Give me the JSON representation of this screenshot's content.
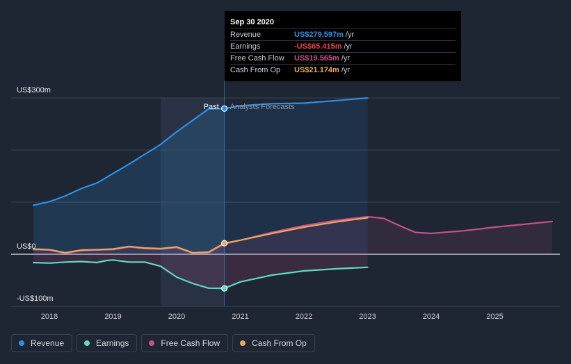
{
  "chart_data": {
    "type": "line",
    "x_ticks": [
      "2018",
      "2019",
      "2020",
      "2021",
      "2022",
      "2023",
      "2024",
      "2025"
    ],
    "y_ticks": [
      {
        "label": "US$300m",
        "value": 300
      },
      {
        "label": "US$0",
        "value": 0
      },
      {
        "label": "-US$100m",
        "value": -100
      }
    ],
    "ylim": [
      -100,
      300
    ],
    "divider_labels": {
      "past": "Past",
      "forecast": "Analysts Forecasts"
    },
    "divider_x": 2020.75,
    "series": [
      {
        "name": "Revenue",
        "color": "#2d8fe3",
        "points": [
          [
            2017.75,
            94
          ],
          [
            2018.0,
            101
          ],
          [
            2018.25,
            112
          ],
          [
            2018.5,
            126
          ],
          [
            2018.75,
            137
          ],
          [
            2019.0,
            155
          ],
          [
            2019.25,
            173
          ],
          [
            2019.5,
            192
          ],
          [
            2019.75,
            211
          ],
          [
            2020.0,
            235
          ],
          [
            2020.25,
            257
          ],
          [
            2020.5,
            279
          ],
          [
            2020.75,
            279.597
          ],
          [
            2021.0,
            285
          ],
          [
            2021.5,
            289
          ],
          [
            2022.0,
            290
          ],
          [
            2022.5,
            295
          ],
          [
            2023.0,
            300
          ]
        ]
      },
      {
        "name": "Earnings",
        "color": "#5dd9c4",
        "points": [
          [
            2017.75,
            -16
          ],
          [
            2018.0,
            -17
          ],
          [
            2018.25,
            -15
          ],
          [
            2018.5,
            -14
          ],
          [
            2018.75,
            -16
          ],
          [
            2018.9,
            -12
          ],
          [
            2019.0,
            -11
          ],
          [
            2019.25,
            -15
          ],
          [
            2019.5,
            -15
          ],
          [
            2019.75,
            -23
          ],
          [
            2020.0,
            -44
          ],
          [
            2020.25,
            -56
          ],
          [
            2020.5,
            -65
          ],
          [
            2020.75,
            -65.415
          ],
          [
            2021.0,
            -53
          ],
          [
            2021.5,
            -40
          ],
          [
            2022.0,
            -32
          ],
          [
            2022.5,
            -28
          ],
          [
            2023.0,
            -25
          ]
        ]
      },
      {
        "name": "Free Cash Flow",
        "color": "#c8508c",
        "points": [
          [
            2017.75,
            9
          ],
          [
            2018.0,
            8
          ],
          [
            2018.25,
            2
          ],
          [
            2018.5,
            7
          ],
          [
            2018.75,
            8
          ],
          [
            2019.0,
            9
          ],
          [
            2019.25,
            14
          ],
          [
            2019.5,
            11
          ],
          [
            2019.75,
            10
          ],
          [
            2020.0,
            13
          ],
          [
            2020.25,
            2
          ],
          [
            2020.5,
            3
          ],
          [
            2020.75,
            19.565
          ],
          [
            2021.0,
            27
          ],
          [
            2021.5,
            42
          ],
          [
            2022.0,
            55
          ],
          [
            2022.5,
            65
          ],
          [
            2023.0,
            72
          ],
          [
            2023.25,
            69
          ],
          [
            2023.5,
            55
          ],
          [
            2023.75,
            42
          ],
          [
            2024.0,
            40
          ],
          [
            2024.5,
            45
          ],
          [
            2025.0,
            52
          ],
          [
            2025.5,
            58
          ],
          [
            2025.9,
            63
          ]
        ]
      },
      {
        "name": "Cash From Op",
        "color": "#e8a85c",
        "points": [
          [
            2017.75,
            10
          ],
          [
            2018.0,
            9
          ],
          [
            2018.25,
            3
          ],
          [
            2018.5,
            8
          ],
          [
            2018.75,
            9
          ],
          [
            2019.0,
            10
          ],
          [
            2019.25,
            15
          ],
          [
            2019.5,
            12
          ],
          [
            2019.75,
            11
          ],
          [
            2020.0,
            14
          ],
          [
            2020.25,
            3
          ],
          [
            2020.5,
            4
          ],
          [
            2020.75,
            21.174
          ],
          [
            2021.0,
            27
          ],
          [
            2021.5,
            40
          ],
          [
            2022.0,
            52
          ],
          [
            2022.5,
            62
          ],
          [
            2023.0,
            70
          ]
        ]
      }
    ]
  },
  "tooltip": {
    "date": "Sep 30 2020",
    "rows": [
      {
        "label": "Revenue",
        "value": "US$279.597m",
        "unit": "/yr",
        "color": "#2d8fe3"
      },
      {
        "label": "Earnings",
        "value": "-US$65.415m",
        "unit": "/yr",
        "color": "#e2434b"
      },
      {
        "label": "Free Cash Flow",
        "value": "US$19.565m",
        "unit": "/yr",
        "color": "#c8508c"
      },
      {
        "label": "Cash From Op",
        "value": "US$21.174m",
        "unit": "/yr",
        "color": "#e8a85c"
      }
    ]
  },
  "legend": [
    {
      "label": "Revenue",
      "color": "#2d8fe3"
    },
    {
      "label": "Earnings",
      "color": "#5dd9c4"
    },
    {
      "label": "Free Cash Flow",
      "color": "#c8508c"
    },
    {
      "label": "Cash From Op",
      "color": "#e8a85c"
    }
  ]
}
